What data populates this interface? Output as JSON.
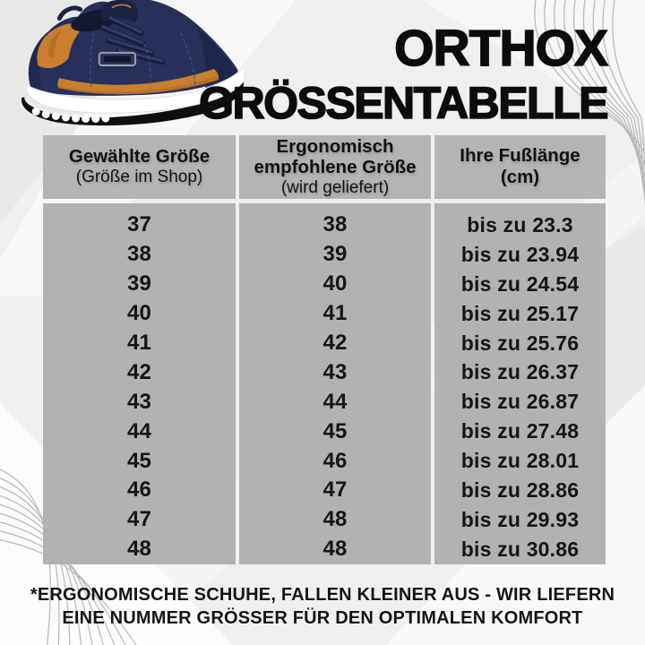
{
  "title": {
    "brand": "ORTHOX",
    "subtitle": "GRÖSSENTABELLE"
  },
  "hero": {
    "description": "navy-sneaker-with-orange-accents"
  },
  "table": {
    "headers": [
      {
        "label": "Gewählte Größe",
        "sublabel": "(Größe im Shop)"
      },
      {
        "label": "Ergonomisch empfohlene Größe",
        "sublabel": "(wird geliefert)"
      },
      {
        "label": "Ihre Fußlänge",
        "sublabel": "(cm)"
      }
    ],
    "rows": [
      [
        "37",
        "38",
        "bis zu 23.3"
      ],
      [
        "38",
        "39",
        "bis zu 23.94"
      ],
      [
        "39",
        "40",
        "bis zu 24.54"
      ],
      [
        "40",
        "41",
        "bis zu 25.17"
      ],
      [
        "41",
        "42",
        "bis zu 25.76"
      ],
      [
        "42",
        "43",
        "bis zu 26.37"
      ],
      [
        "43",
        "44",
        "bis zu 26.87"
      ],
      [
        "44",
        "45",
        "bis zu 27.48"
      ],
      [
        "45",
        "46",
        "bis zu 28.01"
      ],
      [
        "46",
        "47",
        "bis zu 28.86"
      ],
      [
        "47",
        "48",
        "bis zu 29.93"
      ],
      [
        "48",
        "48",
        "bis zu 30.86"
      ]
    ]
  },
  "footnote": {
    "line1": "*ERGONOMISCHE SCHUHE, FALLEN KLEINER AUS - WIR LIEFERN",
    "line2": "EINE NUMMER GRÖSSER FÜR DEN OPTIMALEN KOMFORT"
  },
  "colors": {
    "background": "#efefef",
    "table_gray": "#b3b3b3",
    "text": "#121212",
    "shoe_navy": "#27305a",
    "shoe_orange": "#c97f2f",
    "sole_white": "#ffffff",
    "outsole_black": "#0e0e10",
    "wave_line": "#b0b0b0"
  }
}
